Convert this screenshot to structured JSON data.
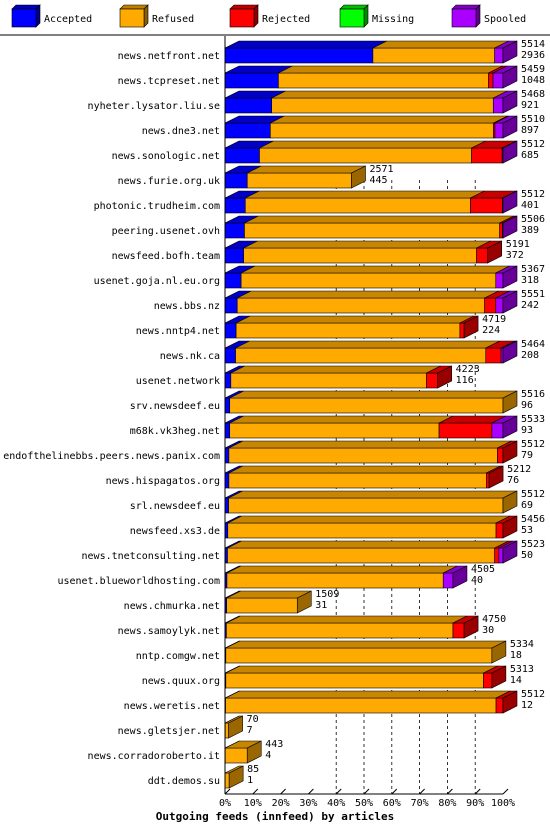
{
  "chart_data": {
    "type": "bar",
    "orientation": "horizontal",
    "stacked": true,
    "normalized_percent": true,
    "title": "Outgoing feeds (innfeed) by articles",
    "x_ticks": [
      "0%",
      "10%",
      "20%",
      "30%",
      "40%",
      "50%",
      "60%",
      "70%",
      "80%",
      "90%",
      "100%"
    ],
    "grid": "vertical-dashed",
    "legend_placement": "top",
    "series": [
      {
        "name": "Accepted",
        "color": "#0000ff"
      },
      {
        "name": "Refused",
        "color": "#ffaa00"
      },
      {
        "name": "Rejected",
        "color": "#ff0000"
      },
      {
        "name": "Missing",
        "color": "#00ff00"
      },
      {
        "name": "Spooled",
        "color": "#aa00ff"
      }
    ],
    "rows": [
      {
        "label": "news.netfront.net",
        "total": "5514",
        "accepted": "2936",
        "segments": [
          53.2,
          43.8,
          0,
          0,
          3.0
        ]
      },
      {
        "label": "news.tcpreset.net",
        "total": "5459",
        "accepted": "1048",
        "segments": [
          19.2,
          75.6,
          1.6,
          0,
          3.6
        ]
      },
      {
        "label": "nyheter.lysator.liu.se",
        "total": "5468",
        "accepted": "921",
        "segments": [
          16.8,
          79.7,
          0,
          0,
          3.5
        ]
      },
      {
        "label": "news.dne3.net",
        "total": "5510",
        "accepted": "897",
        "segments": [
          16.3,
          80.3,
          0.5,
          0,
          2.9
        ]
      },
      {
        "label": "news.sonologic.net",
        "total": "5512",
        "accepted": "685",
        "segments": [
          12.4,
          76.3,
          11.0,
          0,
          0.3
        ]
      },
      {
        "label": "news.furie.org.uk",
        "total": "2571",
        "accepted": "445",
        "segments": [
          8.0,
          37.5,
          0,
          0,
          0
        ]
      },
      {
        "label": "photonic.trudheim.com",
        "total": "5512",
        "accepted": "401",
        "segments": [
          7.3,
          81.0,
          11.5,
          0,
          0.2
        ]
      },
      {
        "label": "peering.usenet.ovh",
        "total": "5506",
        "accepted": "389",
        "segments": [
          7.0,
          91.8,
          1.0,
          0,
          0.2
        ]
      },
      {
        "label": "newsfeed.bofh.team",
        "total": "5191",
        "accepted": "372",
        "segments": [
          6.7,
          83.8,
          4.0,
          0,
          0
        ]
      },
      {
        "label": "usenet.goja.nl.eu.org",
        "total": "5367",
        "accepted": "318",
        "segments": [
          5.8,
          91.6,
          0,
          0,
          2.6
        ]
      },
      {
        "label": "news.bbs.nz",
        "total": "5551",
        "accepted": "242",
        "segments": [
          4.4,
          89.0,
          4.0,
          0,
          2.6
        ]
      },
      {
        "label": "news.nntp4.net",
        "total": "4719",
        "accepted": "224",
        "segments": [
          4.0,
          80.5,
          1.5,
          0,
          0
        ]
      },
      {
        "label": "news.nk.ca",
        "total": "5464",
        "accepted": "208",
        "segments": [
          3.8,
          90.0,
          5.5,
          0,
          0.7
        ]
      },
      {
        "label": "usenet.network",
        "total": "4223",
        "accepted": "116",
        "segments": [
          2.1,
          70.4,
          4.0,
          0,
          0
        ]
      },
      {
        "label": "srv.newsdeef.eu",
        "total": "5516",
        "accepted": "96",
        "segments": [
          1.7,
          98.3,
          0,
          0,
          0
        ]
      },
      {
        "label": "m68k.vk3heg.net",
        "total": "5533",
        "accepted": "93",
        "segments": [
          1.7,
          75.3,
          19.0,
          0,
          4.0
        ]
      },
      {
        "label": "endofthelinebbs.peers.news.panix.com",
        "total": "5512",
        "accepted": "79",
        "segments": [
          1.4,
          96.6,
          2.0,
          0,
          0
        ]
      },
      {
        "label": "news.hispagatos.org",
        "total": "5212",
        "accepted": "76",
        "segments": [
          1.4,
          92.6,
          1.0,
          0,
          0
        ]
      },
      {
        "label": "srl.newsdeef.eu",
        "total": "5512",
        "accepted": "69",
        "segments": [
          1.3,
          98.7,
          0,
          0,
          0
        ]
      },
      {
        "label": "newsfeed.xs3.de",
        "total": "5456",
        "accepted": "53",
        "segments": [
          1.0,
          96.5,
          2.5,
          0,
          0
        ]
      },
      {
        "label": "news.tnetconsulting.net",
        "total": "5523",
        "accepted": "50",
        "segments": [
          0.9,
          96.1,
          1.5,
          0,
          1.5
        ]
      },
      {
        "label": "usenet.blueworldhosting.com",
        "total": "4505",
        "accepted": "40",
        "segments": [
          0.7,
          77.8,
          0,
          0,
          3.5
        ]
      },
      {
        "label": "news.chmurka.net",
        "total": "1509",
        "accepted": "31",
        "segments": [
          0.6,
          25.4,
          0,
          0,
          0
        ]
      },
      {
        "label": "news.samoylyk.net",
        "total": "4750",
        "accepted": "30",
        "segments": [
          0.5,
          81.5,
          4.0,
          0,
          0
        ]
      },
      {
        "label": "nntp.comgw.net",
        "total": "5334",
        "accepted": "18",
        "segments": [
          0.3,
          95.7,
          0,
          0,
          0
        ]
      },
      {
        "label": "news.quux.org",
        "total": "5313",
        "accepted": "14",
        "segments": [
          0.3,
          92.7,
          3.0,
          0,
          0
        ]
      },
      {
        "label": "news.weretis.net",
        "total": "5512",
        "accepted": "12",
        "segments": [
          0.2,
          97.3,
          2.5,
          0,
          0
        ]
      },
      {
        "label": "news.gletsjer.net",
        "total": "70",
        "accepted": "7",
        "segments": [
          0.1,
          1.2,
          0,
          0,
          0
        ]
      },
      {
        "label": "news.corradoroberto.it",
        "total": "443",
        "accepted": "4",
        "segments": [
          0.1,
          7.9,
          0,
          0,
          0
        ]
      },
      {
        "label": "ddt.demos.su",
        "total": "85",
        "accepted": "1",
        "segments": [
          0.0,
          1.5,
          0,
          0,
          0
        ]
      }
    ]
  }
}
